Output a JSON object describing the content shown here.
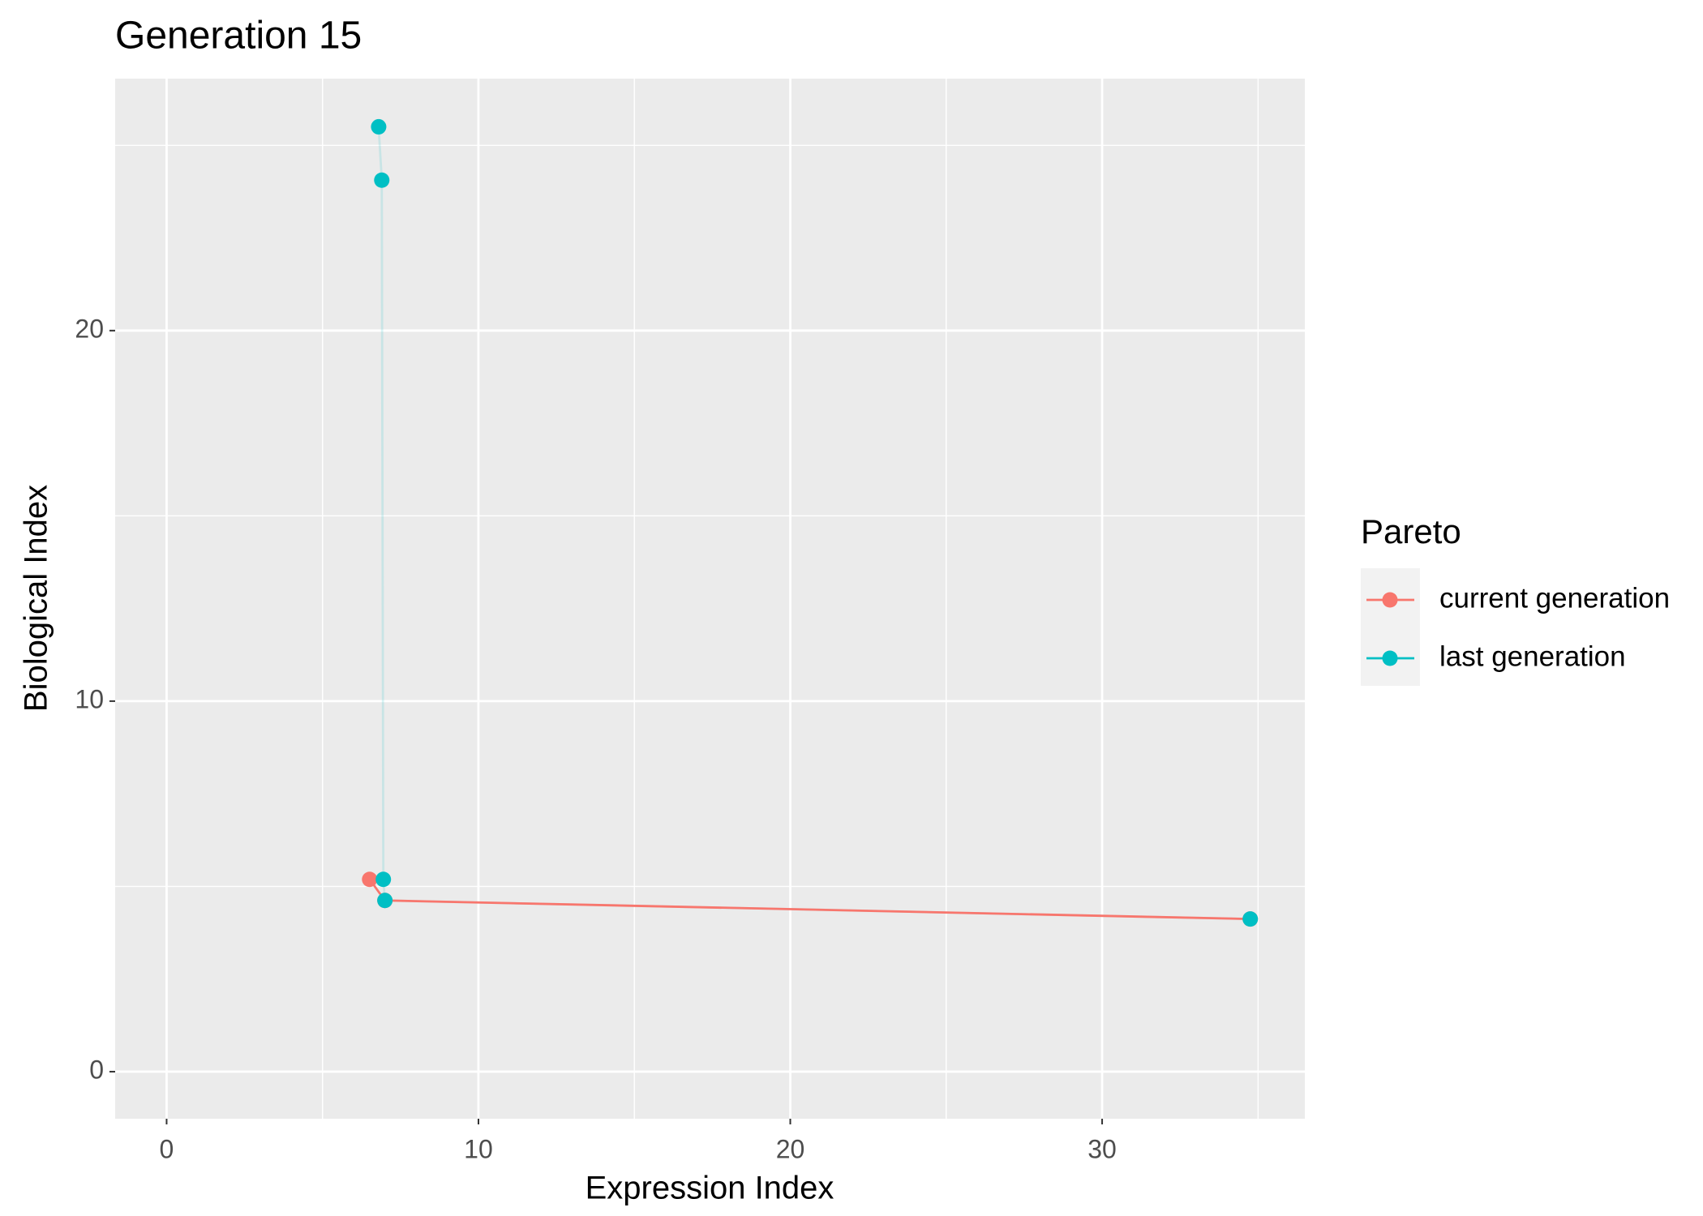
{
  "chart_data": {
    "type": "line",
    "title": "Generation 15",
    "x_label": "Expression Index",
    "y_label": "Biological Index",
    "legend_title": "Pareto",
    "legend_position": "right",
    "grid": true,
    "xlim": [
      -1.65,
      36.5
    ],
    "ylim": [
      -1.27,
      26.8
    ],
    "xticks": [
      0,
      10,
      20,
      30
    ],
    "yticks": [
      0,
      10,
      20
    ],
    "series": [
      {
        "name": "current generation",
        "color": "#F8766D",
        "opacity": 1,
        "x": [
          6.51,
          7.0,
          34.75
        ],
        "values": [
          5.19,
          4.62,
          4.12
        ]
      },
      {
        "name": "last generation",
        "color": "#00BFC4",
        "opacity": 0.15,
        "x": [
          6.8,
          6.9,
          6.95,
          7.0,
          34.75
        ],
        "values": [
          25.5,
          24.06,
          5.19,
          4.62,
          4.12
        ]
      }
    ]
  }
}
